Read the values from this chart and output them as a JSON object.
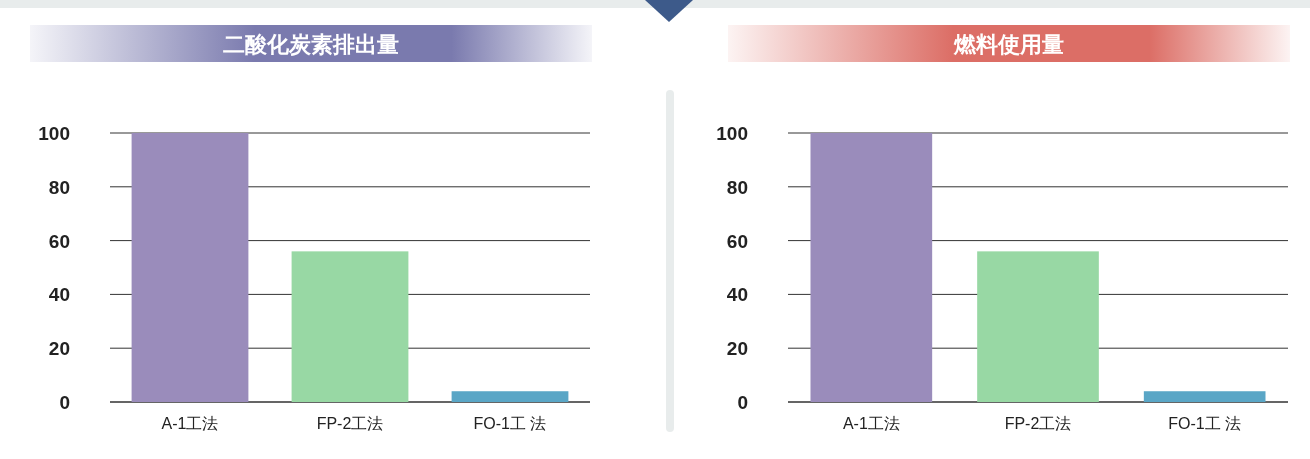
{
  "chart_data": [
    {
      "type": "bar",
      "title": "二酸化炭素排出量",
      "categories": [
        "A-1工法",
        "FP-2工法",
        "FO-1工 法"
      ],
      "values": [
        100,
        56,
        4
      ],
      "colors": [
        "#9a8cbb",
        "#98d8a4",
        "#5aa6c6"
      ],
      "ylim": [
        0,
        100
      ],
      "yticks": [
        0,
        20,
        40,
        60,
        80,
        100
      ],
      "grid": "y"
    },
    {
      "type": "bar",
      "title": "燃料使用量",
      "categories": [
        "A-1工法",
        "FP-2工法",
        "FO-1工 法"
      ],
      "values": [
        100,
        56,
        4
      ],
      "colors": [
        "#9a8cbb",
        "#98d8a4",
        "#5aa6c6"
      ],
      "ylim": [
        0,
        100
      ],
      "yticks": [
        0,
        20,
        40,
        60,
        80,
        100
      ],
      "grid": "y"
    }
  ]
}
